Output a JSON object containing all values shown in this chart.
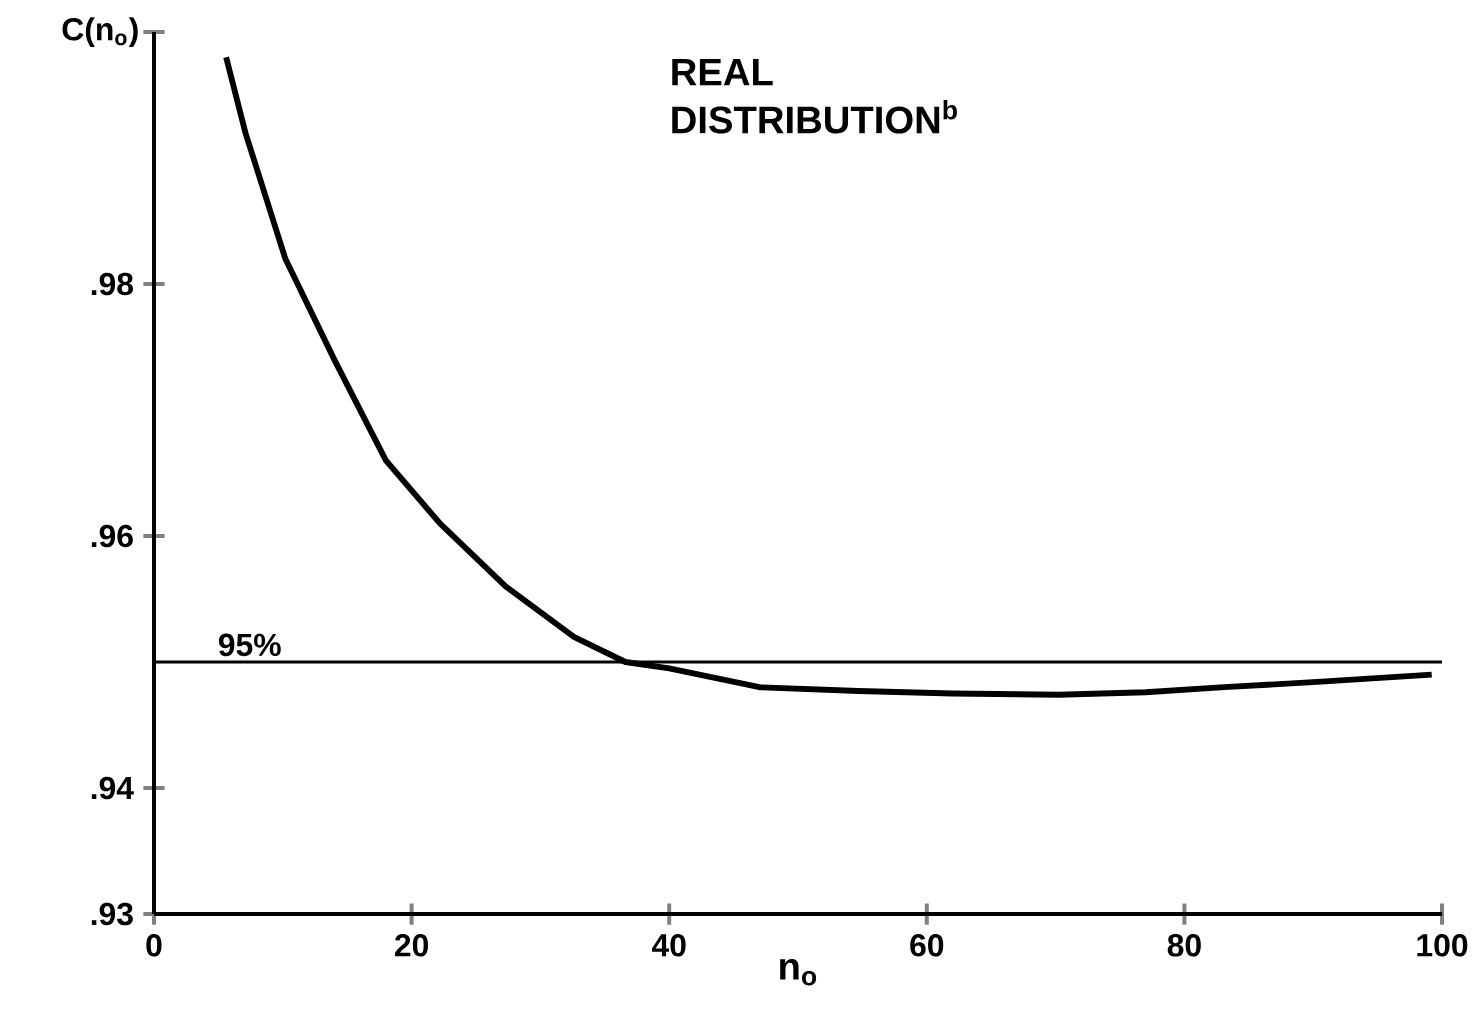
{
  "chart_data": {
    "type": "line",
    "title": "REAL DISTRIBUTION$^{b}$",
    "xlabel": "n$_{o}$",
    "ylabel": "C(n$_{o}$)",
    "x": [
      5.6,
      7.1,
      10.2,
      14.0,
      18.0,
      22.2,
      27.3,
      32.6,
      36.6,
      40,
      47,
      54.7,
      62,
      70.2,
      77,
      83.1,
      90,
      99.2
    ],
    "series": [
      {
        "color": "#000000",
        "values": [
          0.998,
          0.992,
          0.982,
          0.974,
          0.966,
          0.961,
          0.956,
          0.952,
          0.95,
          0.9495,
          0.948,
          0.9477,
          0.9475,
          0.9474,
          0.9476,
          0.948,
          0.9484,
          0.949
        ]
      }
    ],
    "xlim": [
      0,
      100
    ],
    "ylim": [
      0.93,
      1.0
    ],
    "xticks": [
      0,
      20,
      40,
      60,
      80,
      100
    ],
    "yticks": [
      {
        "value": 0.93,
        "label": ".93"
      },
      {
        "value": 0.94,
        "label": ".94"
      },
      {
        "value": 0.96,
        "label": ".96"
      },
      {
        "value": 0.98,
        "label": ".98"
      },
      {
        "value": 1.0,
        "label": null
      }
    ],
    "ref_lines": [
      {
        "axis": "y",
        "value": 0.95,
        "label": "95%"
      }
    ]
  }
}
